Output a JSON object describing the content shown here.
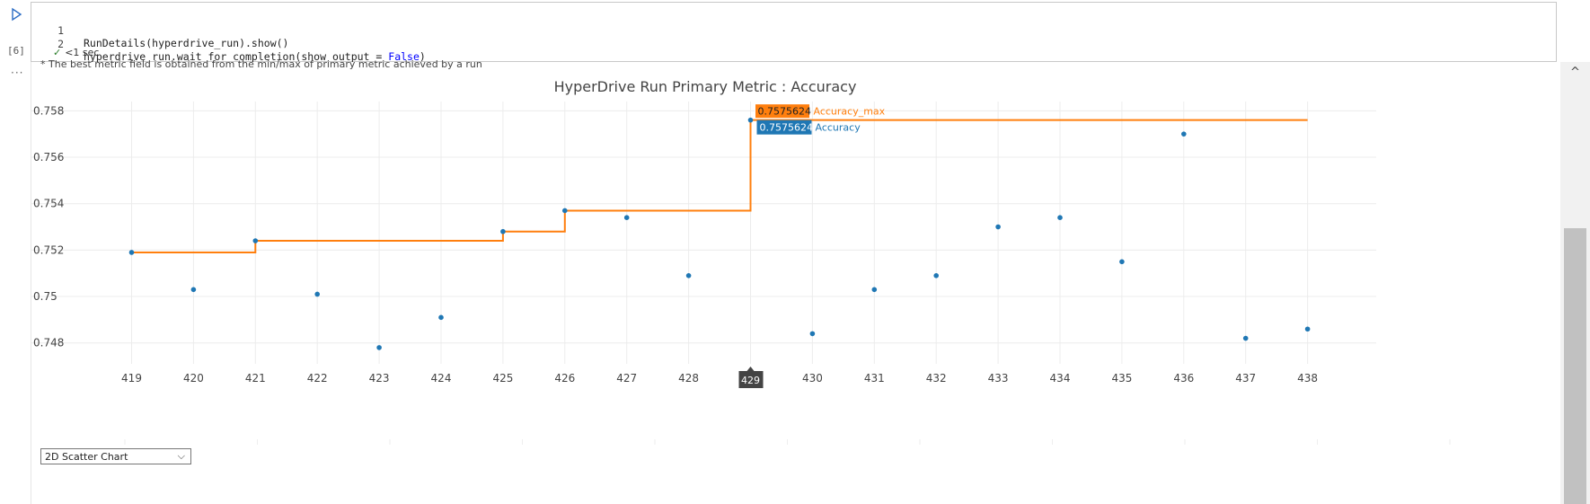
{
  "cell": {
    "execution_count": "[6]",
    "lines": [
      {
        "no": "1",
        "text": "RunDetails(hyperdrive_run).show()"
      },
      {
        "no": "2",
        "text_before": "hyperdrive_run.wait_for_completion(show_output = ",
        "keyword": "False",
        "text_after": ")"
      }
    ],
    "status": "<1 sec"
  },
  "output": {
    "note": "* The best metric field is obtained from the min/max of primary metric achieved by a run",
    "chart_type_select": "2D Scatter Chart"
  },
  "colors": {
    "accuracy": "#1f77b4",
    "accuracy_max": "#ff7f0e"
  },
  "chart_data": {
    "type": "scatter",
    "title": "HyperDrive Run Primary Metric : Accuracy",
    "x": [
      419,
      420,
      421,
      422,
      423,
      424,
      425,
      426,
      427,
      428,
      429,
      430,
      431,
      432,
      433,
      434,
      435,
      436,
      437,
      438
    ],
    "xlim": [
      418,
      440
    ],
    "ylim": [
      0.7471,
      0.7584
    ],
    "yticks": [
      0.748,
      0.75,
      0.752,
      0.754,
      0.756,
      0.758
    ],
    "ytick_labels": [
      "0.748",
      "0.75",
      "0.752",
      "0.754",
      "0.756",
      "0.758"
    ],
    "series": [
      {
        "name": "Accuracy",
        "mode": "markers",
        "values": [
          0.7519,
          0.7503,
          0.7524,
          0.7501,
          0.7478,
          0.7491,
          0.7528,
          0.7537,
          0.7534,
          0.7509,
          0.7576,
          0.7484,
          0.7503,
          0.7509,
          0.753,
          0.7534,
          0.7515,
          0.757,
          0.7482,
          0.7486
        ]
      },
      {
        "name": "Accuracy_max",
        "mode": "step",
        "values": [
          0.7519,
          0.7519,
          0.7524,
          0.7524,
          0.7524,
          0.7524,
          0.7528,
          0.7537,
          0.7537,
          0.7537,
          0.7576,
          0.7576,
          0.7576,
          0.7576,
          0.7576,
          0.7576,
          0.7576,
          0.7576,
          0.7576,
          0.7576
        ]
      }
    ],
    "hover": {
      "x_label": "429",
      "accuracy_max_value": "0.7575624",
      "accuracy_value": "0.7575624"
    }
  }
}
